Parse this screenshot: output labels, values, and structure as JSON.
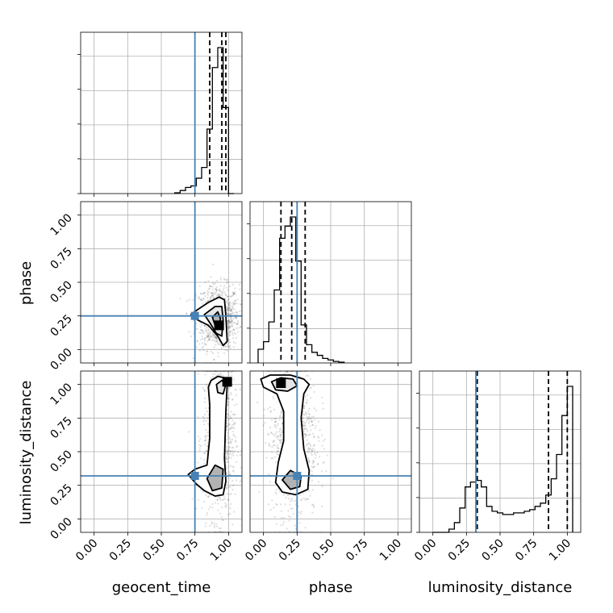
{
  "chart_data": {
    "type": "corner",
    "parameters": [
      "geocent_time",
      "phase",
      "luminosity_distance"
    ],
    "axis_range": [
      -0.1,
      1.1
    ],
    "ticks": [
      0.0,
      0.25,
      0.5,
      0.75,
      1.0
    ],
    "tick_labels": [
      "0.00",
      "0.25",
      "0.50",
      "0.75",
      "1.00"
    ],
    "grid": true,
    "colors": {
      "truth": "#4682b4",
      "lines": "#000000",
      "grid": "#b0b0b0"
    },
    "truths": {
      "geocent_time": 0.75,
      "phase": 0.25,
      "luminosity_distance": 0.32
    },
    "quantiles": {
      "geocent_time": [
        0.86,
        0.95,
        0.98
      ],
      "phase": [
        0.13,
        0.21,
        0.31
      ],
      "luminosity_distance": [
        0.33,
        0.86,
        1.0
      ]
    },
    "histograms": {
      "geocent_time": {
        "bin_edges": [
          0.6,
          0.64,
          0.68,
          0.72,
          0.76,
          0.8,
          0.84,
          0.88,
          0.92,
          0.96,
          1.0,
          1.04
        ],
        "counts": [
          0.5,
          2,
          4,
          5,
          10,
          17,
          42,
          82,
          95,
          56,
          0
        ]
      },
      "phase": {
        "bin_edges": [
          -0.04,
          0.0,
          0.04,
          0.08,
          0.12,
          0.16,
          0.2,
          0.24,
          0.28,
          0.32,
          0.36,
          0.4,
          0.44,
          0.48,
          0.52,
          0.56,
          0.6
        ],
        "counts": [
          9,
          14,
          27,
          48,
          82,
          90,
          96,
          67,
          25,
          12,
          7,
          5,
          3,
          2,
          1,
          0.5
        ]
      },
      "luminosity_distance": {
        "bin_edges": [
          0.0,
          0.04,
          0.08,
          0.12,
          0.16,
          0.2,
          0.24,
          0.28,
          0.32,
          0.36,
          0.4,
          0.44,
          0.48,
          0.52,
          0.56,
          0.6,
          0.64,
          0.68,
          0.72,
          0.76,
          0.8,
          0.84,
          0.88,
          0.92,
          0.96,
          1.0,
          1.04
        ],
        "counts": [
          0,
          0,
          0,
          2,
          6,
          15,
          28,
          31,
          32,
          28,
          16,
          13,
          12,
          11,
          11,
          12,
          12,
          13,
          14,
          16,
          18,
          23,
          33,
          48,
          72,
          90
        ]
      }
    },
    "pairs": [
      {
        "x": "geocent_time",
        "y": "phase",
        "scatter_center": [
          0.92,
          0.24
        ],
        "scatter_spread": [
          0.08,
          0.12
        ],
        "contours": [
          [
            [
              0.72,
              0.26
            ],
            [
              0.76,
              0.29
            ],
            [
              0.85,
              0.35
            ],
            [
              0.93,
              0.39
            ],
            [
              0.97,
              0.37
            ],
            [
              0.98,
              0.25
            ],
            [
              0.99,
              0.06
            ],
            [
              0.96,
              0.03
            ],
            [
              0.92,
              0.1
            ],
            [
              0.85,
              0.18
            ],
            [
              0.77,
              0.22
            ],
            [
              0.72,
              0.26
            ]
          ],
          [
            [
              0.82,
              0.26
            ],
            [
              0.9,
              0.32
            ],
            [
              0.95,
              0.32
            ],
            [
              0.96,
              0.22
            ],
            [
              0.95,
              0.1
            ],
            [
              0.91,
              0.12
            ],
            [
              0.86,
              0.2
            ],
            [
              0.82,
              0.26
            ]
          ],
          [
            [
              0.88,
              0.24
            ],
            [
              0.92,
              0.28
            ],
            [
              0.94,
              0.23
            ],
            [
              0.93,
              0.16
            ],
            [
              0.9,
              0.18
            ],
            [
              0.88,
              0.24
            ]
          ]
        ],
        "peak": [
          0.93,
          0.18
        ]
      },
      {
        "x": "geocent_time",
        "y": "luminosity_distance",
        "scatter_center": [
          0.93,
          0.6
        ],
        "scatter_spread": [
          0.06,
          0.3
        ],
        "contours": [
          [
            [
              0.87,
              1.03
            ],
            [
              0.92,
              1.06
            ],
            [
              0.97,
              1.05
            ],
            [
              0.99,
              1.0
            ],
            [
              0.98,
              0.8
            ],
            [
              0.97,
              0.45
            ],
            [
              0.98,
              0.28
            ],
            [
              0.96,
              0.18
            ],
            [
              0.9,
              0.17
            ],
            [
              0.82,
              0.21
            ],
            [
              0.76,
              0.26
            ],
            [
              0.7,
              0.33
            ],
            [
              0.75,
              0.37
            ],
            [
              0.84,
              0.4
            ],
            [
              0.86,
              0.6
            ],
            [
              0.86,
              0.85
            ],
            [
              0.85,
              0.98
            ],
            [
              0.87,
              1.03
            ]
          ],
          [
            [
              0.91,
              1.0
            ],
            [
              0.95,
              1.03
            ],
            [
              0.98,
              1.0
            ],
            [
              0.96,
              0.93
            ],
            [
              0.92,
              0.94
            ],
            [
              0.91,
              1.0
            ]
          ],
          [
            [
              0.84,
              0.3
            ],
            [
              0.9,
              0.4
            ],
            [
              0.96,
              0.37
            ],
            [
              0.95,
              0.23
            ],
            [
              0.88,
              0.21
            ],
            [
              0.84,
              0.3
            ]
          ]
        ],
        "peak": [
          0.99,
          1.02
        ]
      },
      {
        "x": "phase",
        "y": "luminosity_distance",
        "scatter_center": [
          0.22,
          0.6
        ],
        "scatter_spread": [
          0.09,
          0.3
        ],
        "contours": [
          [
            [
              -0.02,
              1.04
            ],
            [
              0.05,
              1.07
            ],
            [
              0.2,
              1.07
            ],
            [
              0.3,
              1.04
            ],
            [
              0.34,
              1.0
            ],
            [
              0.3,
              0.93
            ],
            [
              0.28,
              0.75
            ],
            [
              0.3,
              0.52
            ],
            [
              0.34,
              0.36
            ],
            [
              0.33,
              0.22
            ],
            [
              0.24,
              0.18
            ],
            [
              0.14,
              0.2
            ],
            [
              0.09,
              0.27
            ],
            [
              0.11,
              0.42
            ],
            [
              0.15,
              0.58
            ],
            [
              0.15,
              0.8
            ],
            [
              0.1,
              0.93
            ],
            [
              0.0,
              0.98
            ],
            [
              -0.02,
              1.04
            ]
          ],
          [
            [
              0.06,
              1.02
            ],
            [
              0.13,
              1.05
            ],
            [
              0.22,
              1.04
            ],
            [
              0.25,
              0.99
            ],
            [
              0.18,
              0.95
            ],
            [
              0.09,
              0.96
            ],
            [
              0.06,
              1.02
            ]
          ],
          [
            [
              0.14,
              0.29
            ],
            [
              0.2,
              0.36
            ],
            [
              0.28,
              0.32
            ],
            [
              0.27,
              0.24
            ],
            [
              0.2,
              0.22
            ],
            [
              0.14,
              0.29
            ]
          ]
        ],
        "peak": [
          0.13,
          1.01
        ]
      }
    ]
  }
}
